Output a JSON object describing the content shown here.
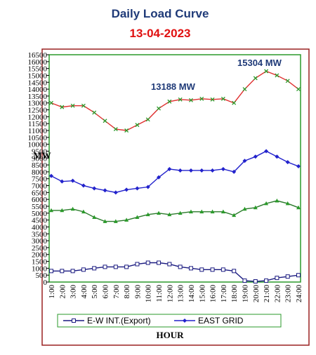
{
  "chart_data": {
    "type": "line",
    "title": "Daily Load Curve",
    "subtitle": "13-04-2023",
    "x_label": "HOUR",
    "y_label": "MW",
    "annotations": [
      "13188 MW",
      "15304 MW"
    ],
    "categories": [
      "1:00",
      "2:00",
      "3:00",
      "4:00",
      "5:00",
      "6:00",
      "7:00",
      "8:00",
      "9:00",
      "10:00",
      "11:00",
      "12:00",
      "13:00",
      "14:00",
      "15:00",
      "16:00",
      "17:00",
      "18:00",
      "19:00",
      "20:00",
      "21:00",
      "22:00",
      "23:00",
      "24:00"
    ],
    "series": [
      {
        "color": "#e03030",
        "marker": "x",
        "marker_color": "#2a9a2a",
        "values": [
          13000,
          12700,
          12800,
          12800,
          12300,
          11700,
          11100,
          11000,
          11400,
          11800,
          12600,
          13100,
          13250,
          13200,
          13300,
          13250,
          13300,
          13000,
          14000,
          14800,
          15304,
          15000,
          14600,
          14000
        ]
      },
      {
        "name": "EAST GRID",
        "color": "#2222cc",
        "marker": "diamond",
        "marker_color": "#2222cc",
        "values": [
          7700,
          7300,
          7350,
          7000,
          6800,
          6650,
          6500,
          6700,
          6800,
          6900,
          7600,
          8200,
          8100,
          8100,
          8100,
          8100,
          8200,
          8000,
          8800,
          9100,
          9500,
          9100,
          8700,
          8400
        ]
      },
      {
        "color": "#2a7a2a",
        "marker": "triangle",
        "marker_color": "#2a9a2a",
        "values": [
          5200,
          5200,
          5300,
          5100,
          4700,
          4400,
          4400,
          4500,
          4700,
          4900,
          5000,
          4900,
          5000,
          5100,
          5100,
          5100,
          5100,
          4850,
          5300,
          5400,
          5700,
          5900,
          5700,
          5400
        ]
      },
      {
        "name": "E-W INT.(Export)",
        "color": "#1a1a80",
        "marker": "square",
        "marker_color": "#1a1a80",
        "values": [
          800,
          800,
          800,
          900,
          1000,
          1100,
          1100,
          1100,
          1300,
          1400,
          1400,
          1300,
          1100,
          1000,
          900,
          900,
          900,
          800,
          100,
          50,
          100,
          300,
          400,
          500
        ]
      }
    ],
    "legend_order": [
      3,
      1
    ],
    "ylim": [
      0,
      16500
    ],
    "yticks": [
      0,
      500,
      1000,
      1500,
      2000,
      2500,
      3000,
      3500,
      4000,
      4500,
      5000,
      5500,
      6000,
      6500,
      7000,
      7500,
      8000,
      8500,
      9000,
      9500,
      10000,
      10500,
      11000,
      11500,
      12000,
      12500,
      13000,
      13500,
      14000,
      14500,
      15000,
      15500,
      16000,
      16500
    ],
    "grid": false
  }
}
